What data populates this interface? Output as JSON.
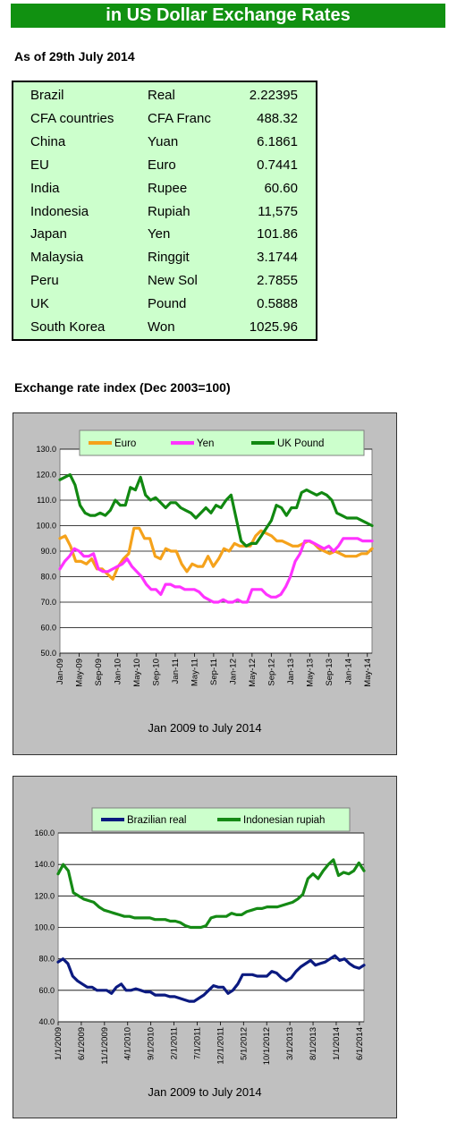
{
  "header": {
    "title": "in US Dollar Exchange Rates",
    "as_of": "As of 29th July 2014"
  },
  "rates": [
    {
      "country": "Brazil",
      "currency": "Real",
      "value": "2.22395"
    },
    {
      "country": "CFA countries",
      "currency": "CFA Franc",
      "value": "488.32"
    },
    {
      "country": "China",
      "currency": "Yuan",
      "value": "6.1861"
    },
    {
      "country": "EU",
      "currency": "Euro",
      "value": "0.7441"
    },
    {
      "country": "India",
      "currency": "Rupee",
      "value": "60.60"
    },
    {
      "country": "Indonesia",
      "currency": "Rupiah",
      "value": "11,575"
    },
    {
      "country": "Japan",
      "currency": "Yen",
      "value": "101.86"
    },
    {
      "country": "Malaysia",
      "currency": "Ringgit",
      "value": "3.1744"
    },
    {
      "country": "Peru",
      "currency": "New Sol",
      "value": "2.7855"
    },
    {
      "country": "UK",
      "currency": "Pound",
      "value": "0.5888"
    },
    {
      "country": "South Korea",
      "currency": "Won",
      "value": "1025.96"
    }
  ],
  "index_title": "Exchange rate index (Dec 2003=100)",
  "colors": {
    "banner": "#119111",
    "table_bg": "#ccffcc",
    "euro": "#f5a21b",
    "yen": "#ff33ff",
    "pound": "#118811",
    "real": "#0b1a80",
    "rupiah": "#158a15",
    "panel": "#c0c0c0",
    "legend_bg": "#ccffcc"
  },
  "chart_data": [
    {
      "type": "line",
      "caption": "Jan 2009 to July 2014",
      "ylim": [
        50,
        130
      ],
      "yticks": [
        "130.0",
        "120.0",
        "110.0",
        "100.0",
        "90.0",
        "80.0",
        "70.0",
        "60.0",
        "50.0"
      ],
      "xticks": [
        "Jan-09",
        "May-09",
        "Sep-09",
        "Jan-10",
        "May-10",
        "Sep-10",
        "Jan-11",
        "May-11",
        "Sep-11",
        "Jan-12",
        "May-12",
        "Sep-12",
        "Jan-13",
        "May-13",
        "Sep-13",
        "Jan-14",
        "May-14"
      ],
      "legend_position": "top",
      "grid": true,
      "series": [
        {
          "name": "Euro",
          "color": "#f5a21b",
          "values": [
            95,
            96,
            92,
            86,
            86,
            85,
            87,
            83,
            83,
            81,
            79,
            84,
            87,
            89,
            99,
            99,
            95,
            95,
            88,
            87,
            91,
            90,
            90,
            85,
            82,
            85,
            84,
            84,
            88,
            84,
            87,
            91,
            90,
            93,
            92,
            92,
            92,
            96,
            98,
            97,
            96,
            94,
            94,
            93,
            92,
            92,
            93,
            94,
            93,
            91,
            90,
            89,
            90,
            89,
            88,
            88,
            88,
            89,
            89,
            91
          ]
        },
        {
          "name": "Yen",
          "color": "#ff33ff",
          "values": [
            83,
            86,
            88,
            91,
            90,
            88,
            88,
            89,
            83,
            82,
            82,
            83,
            84,
            85,
            87,
            84,
            82,
            80,
            77,
            75,
            75,
            73,
            77,
            77,
            76,
            76,
            75,
            75,
            75,
            74,
            72,
            71,
            70,
            70,
            71,
            70,
            70,
            71,
            70,
            70,
            75,
            75,
            75,
            73,
            72,
            72,
            73,
            76,
            80,
            86,
            89,
            94,
            94,
            93,
            92,
            91,
            92,
            90,
            92,
            95,
            95,
            95,
            95,
            94,
            94,
            94
          ]
        },
        {
          "name": "UK Pound",
          "color": "#118811",
          "values": [
            118,
            119,
            120,
            116,
            108,
            105,
            104,
            104,
            105,
            104,
            106,
            110,
            108,
            108,
            115,
            114,
            119,
            112,
            110,
            111,
            109,
            107,
            109,
            109,
            107,
            106,
            105,
            103,
            105,
            107,
            105,
            108,
            107,
            110,
            112,
            103,
            94,
            92,
            93,
            93,
            96,
            99,
            102,
            108,
            107,
            104,
            107,
            107,
            113,
            114,
            113,
            112,
            113,
            112,
            110,
            105,
            104,
            103,
            103,
            103,
            102,
            101,
            100
          ]
        }
      ]
    },
    {
      "type": "line",
      "caption": "Jan 2009 to July 2014",
      "ylim": [
        40,
        160
      ],
      "yticks": [
        "160.0",
        "140.0",
        "120.0",
        "100.0",
        "80.0",
        "60.0",
        "40.0"
      ],
      "xticks": [
        "1/1/2009",
        "6/1/2009",
        "11/1/2009",
        "4/1/2010",
        "9/1/2010",
        "2/1/2011",
        "7/1/2011",
        "12/1/2011",
        "5/1/2012",
        "10/1/2012",
        "3/1/2013",
        "8/1/2013",
        "1/1/2014",
        "6/1/2014"
      ],
      "legend_position": "top",
      "grid": true,
      "series": [
        {
          "name": "Brazilian real",
          "color": "#0b1a80",
          "values": [
            78,
            80,
            77,
            69,
            66,
            64,
            62,
            62,
            60,
            60,
            60,
            58,
            62,
            64,
            60,
            60,
            61,
            60,
            59,
            59,
            57,
            57,
            57,
            56,
            56,
            55,
            54,
            53,
            53,
            55,
            57,
            60,
            63,
            62,
            62,
            58,
            60,
            64,
            70,
            70,
            70,
            69,
            69,
            69,
            72,
            71,
            68,
            66,
            68,
            72,
            75,
            77,
            79,
            76,
            77,
            78,
            80,
            82,
            79,
            80,
            77,
            75,
            74,
            76
          ]
        },
        {
          "name": "Indonesian rupiah",
          "color": "#158a15",
          "values": [
            134,
            140,
            136,
            122,
            120,
            118,
            117,
            116,
            113,
            111,
            110,
            109,
            108,
            107,
            107,
            106,
            106,
            106,
            106,
            105,
            105,
            105,
            104,
            104,
            103,
            101,
            100,
            100,
            100,
            101,
            106,
            107,
            107,
            107,
            109,
            108,
            108,
            110,
            111,
            112,
            112,
            113,
            113,
            113,
            114,
            115,
            116,
            118,
            121,
            131,
            134,
            131,
            136,
            140,
            143,
            133,
            135,
            134,
            136,
            141,
            136
          ]
        }
      ]
    }
  ]
}
